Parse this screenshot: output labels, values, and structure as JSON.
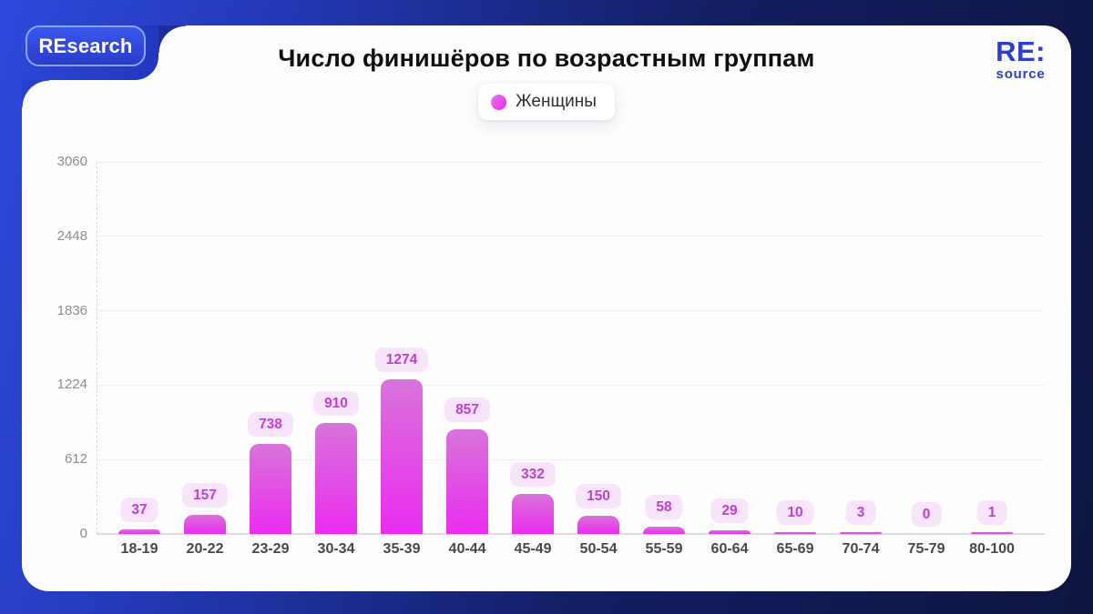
{
  "header": {
    "badge_label": "REsearch",
    "title": "Число финишёров по возрастным группам",
    "logo_primary": "RE:",
    "logo_secondary": "source"
  },
  "legend": {
    "items": [
      {
        "label": "Женщины",
        "color_start": "#f273f2",
        "color_end": "#df2ee3"
      }
    ]
  },
  "chart_data": {
    "type": "bar",
    "title": "Число финишёров по возрастным группам",
    "categories": [
      "18-19",
      "20-22",
      "23-29",
      "30-34",
      "35-39",
      "40-44",
      "45-49",
      "50-54",
      "55-59",
      "60-64",
      "65-69",
      "70-74",
      "75-79",
      "80-100"
    ],
    "series": [
      {
        "name": "Женщины",
        "values": [
          37,
          157,
          738,
          910,
          1274,
          857,
          332,
          150,
          58,
          29,
          10,
          3,
          0,
          1
        ]
      }
    ],
    "xlabel": "",
    "ylabel": "",
    "ylim": [
      0,
      3060
    ],
    "yticks": [
      0,
      612,
      1224,
      1836,
      2448,
      3060
    ],
    "grid": "horizontal solid lines, dashed y-axis",
    "legend_position": "top-center",
    "value_labels": true,
    "colors": {
      "bar_top": "#d973da",
      "bar_bottom": "#ea2cf0",
      "value_badge_bg": "#f9e5fb",
      "value_badge_text": "#bf3fd6",
      "grid_line": "#efeef3",
      "baseline": "#dcdce2",
      "tick_label": "#8d8d95",
      "x_label": "#47474d"
    }
  },
  "colors": {
    "background_left": "#2e49dc",
    "background_right": "#0e1540",
    "card_bg": "#fdfdfe",
    "accent_blue": "#2b3ecf",
    "badge_border": "#8ba3f7"
  }
}
